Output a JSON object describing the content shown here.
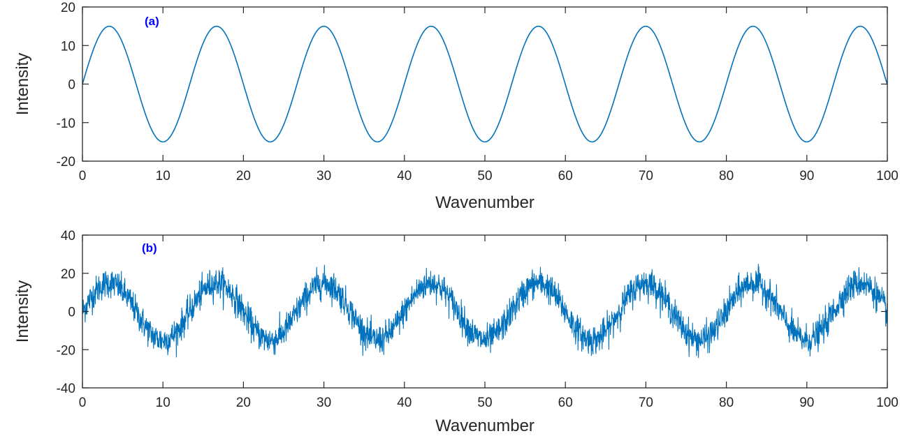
{
  "chart_data": [
    {
      "type": "line",
      "annotation": "(a)",
      "xlabel": "Wavenumber",
      "ylabel": "Intensity",
      "xlim": [
        0,
        100
      ],
      "ylim": [
        -20,
        20
      ],
      "xticks": [
        0,
        10,
        20,
        30,
        40,
        50,
        60,
        70,
        80,
        90,
        100
      ],
      "yticks": [
        -20,
        -10,
        0,
        10,
        20
      ],
      "grid": false,
      "series": [
        {
          "function": "sine",
          "amplitude": 15,
          "period": 13.33,
          "offset": 0,
          "noise_amplitude": 0,
          "x": [
            0,
            3.33,
            6.67,
            10,
            13.33,
            16.67,
            20,
            23.33,
            26.67,
            30,
            33.33,
            36.67,
            40,
            43.33,
            46.67,
            50,
            53.33,
            56.67,
            60,
            63.33,
            66.67,
            70,
            73.33,
            76.67,
            80,
            83.33,
            86.67,
            90,
            93.33,
            96.67,
            100
          ],
          "y": [
            0,
            15,
            0,
            -15,
            0,
            15,
            0,
            -15,
            0,
            15,
            0,
            -15,
            0,
            15,
            0,
            -15,
            0,
            15,
            0,
            -15,
            0,
            15,
            0,
            -15,
            0,
            15,
            0,
            -15,
            0,
            15,
            0
          ],
          "color": "#0072BD"
        }
      ]
    },
    {
      "type": "line",
      "annotation": "(b)",
      "xlabel": "Wavenumber",
      "ylabel": "Intensity",
      "xlim": [
        0,
        100
      ],
      "ylim": [
        -40,
        40
      ],
      "xticks": [
        0,
        10,
        20,
        30,
        40,
        50,
        60,
        70,
        80,
        90,
        100
      ],
      "yticks": [
        -40,
        -20,
        0,
        20,
        40
      ],
      "grid": false,
      "series": [
        {
          "function": "sine",
          "amplitude": 15,
          "period": 13.33,
          "offset": 0,
          "noise_amplitude": 7,
          "x": [
            0,
            3.33,
            6.67,
            10,
            13.33,
            16.67,
            20,
            23.33,
            26.67,
            30,
            33.33,
            36.67,
            40,
            43.33,
            46.67,
            50,
            53.33,
            56.67,
            60,
            63.33,
            66.67,
            70,
            73.33,
            76.67,
            80,
            83.33,
            86.67,
            90,
            93.33,
            96.67,
            100
          ],
          "y": [
            0,
            15,
            0,
            -15,
            0,
            15,
            0,
            -15,
            0,
            15,
            0,
            -15,
            0,
            15,
            0,
            -15,
            0,
            15,
            0,
            -15,
            0,
            15,
            0,
            -15,
            0,
            15,
            0,
            -15,
            0,
            15,
            0
          ],
          "color": "#0072BD"
        }
      ]
    }
  ],
  "colors": {
    "line": "#0072BD",
    "axis": "#262626",
    "annotation": "#0000FF"
  }
}
